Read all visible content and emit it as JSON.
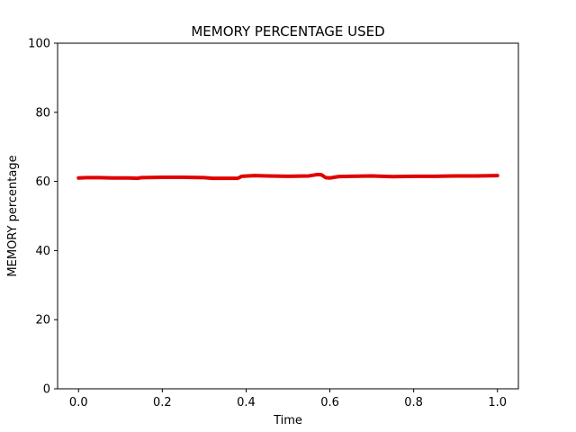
{
  "chart_data": {
    "type": "line",
    "title": "MEMORY PERCENTAGE USED",
    "xlabel": "Time",
    "ylabel": "MEMORY percentage",
    "xlim": [
      -0.05,
      1.05
    ],
    "ylim": [
      0,
      100
    ],
    "xticks": [
      0.0,
      0.2,
      0.4,
      0.6,
      0.8,
      1.0
    ],
    "xtick_labels": [
      "0.0",
      "0.2",
      "0.4",
      "0.6",
      "0.8",
      "1.0"
    ],
    "yticks": [
      0,
      20,
      40,
      60,
      80,
      100
    ],
    "ytick_labels": [
      "0",
      "20",
      "40",
      "60",
      "80",
      "100"
    ],
    "grid": false,
    "line_color": "#e00000",
    "series": [
      {
        "x": [
          0.0,
          0.02,
          0.05,
          0.08,
          0.12,
          0.14,
          0.15,
          0.2,
          0.25,
          0.3,
          0.32,
          0.35,
          0.38,
          0.39,
          0.42,
          0.45,
          0.5,
          0.55,
          0.57,
          0.58,
          0.59,
          0.6,
          0.62,
          0.65,
          0.7,
          0.75,
          0.8,
          0.85,
          0.9,
          0.95,
          1.0
        ],
        "y": [
          61.0,
          61.1,
          61.1,
          61.0,
          61.0,
          60.9,
          61.1,
          61.2,
          61.2,
          61.1,
          60.9,
          60.9,
          60.9,
          61.5,
          61.7,
          61.6,
          61.5,
          61.6,
          62.0,
          61.9,
          61.1,
          61.0,
          61.4,
          61.5,
          61.6,
          61.4,
          61.5,
          61.5,
          61.6,
          61.6,
          61.7
        ]
      }
    ]
  }
}
